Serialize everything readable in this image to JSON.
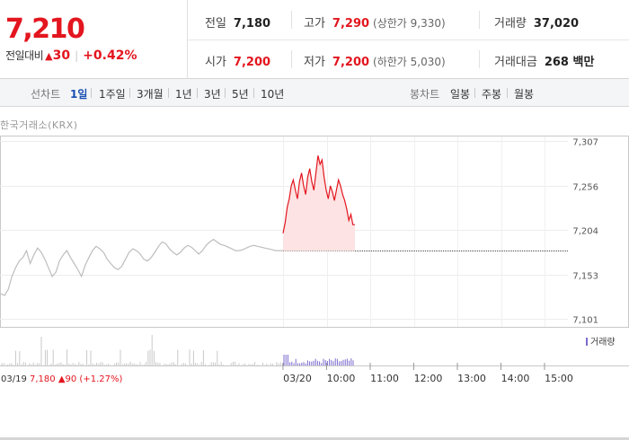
{
  "quote": {
    "price": "7,210",
    "change_label": "전일대비",
    "change_value": "30",
    "change_pct": "+0.42%",
    "prev_close_label": "전일",
    "prev_close": "7,180",
    "high_label": "고가",
    "high": "7,290",
    "upper_limit": "(상한가 9,330)",
    "volume_label": "거래량",
    "volume": "37,020",
    "open_label": "시가",
    "open": "7,200",
    "low_label": "저가",
    "low": "7,200",
    "lower_limit": "(하한가 5,030)",
    "amount_label": "거래대금",
    "amount": "268 백만"
  },
  "tabs": {
    "line_label": "선차트",
    "line": [
      "1일",
      "1주일",
      "3개월",
      "1년",
      "3년",
      "5년",
      "10년"
    ],
    "candle_label": "봉차트",
    "candle": [
      "일봉",
      "주봉",
      "월봉"
    ],
    "active": "1일"
  },
  "source_label": "한국거래소(KRX)",
  "chart_data": {
    "type": "line",
    "y_ticks": [
      "7,307",
      "7,256",
      "7,204",
      "7,153",
      "7,101"
    ],
    "ylim": [
      7101,
      7307
    ],
    "reference_price": 7180,
    "x_ticks": [
      "03/20",
      "10:00",
      "11:00",
      "12:00",
      "13:00",
      "14:00",
      "15:00"
    ],
    "x_tick_hours": [
      9.0,
      10.0,
      11.0,
      12.0,
      13.0,
      14.0,
      15.0
    ],
    "prev_day_caption": {
      "date": "03/19",
      "price": "7,180",
      "change": "90",
      "pct": "(+1.27%)"
    },
    "legend": "거래량",
    "grid": true,
    "series": [
      {
        "name": "",
        "day": "03/19",
        "values": [
          7130,
          7128,
          7135,
          7150,
          7160,
          7168,
          7172,
          7180,
          7165,
          7175,
          7183,
          7178,
          7170,
          7160,
          7150,
          7155,
          7168,
          7175,
          7180,
          7172,
          7165,
          7158,
          7150,
          7163,
          7172,
          7180,
          7185,
          7182,
          7178,
          7170,
          7165,
          7160,
          7158,
          7162,
          7170,
          7178,
          7182,
          7180,
          7176,
          7170,
          7168,
          7172,
          7178,
          7185,
          7190,
          7188,
          7182,
          7178,
          7175,
          7178,
          7183,
          7186,
          7184,
          7180,
          7176,
          7180,
          7186,
          7190,
          7193,
          7190,
          7187,
          7186,
          7184,
          7182,
          7180,
          7180,
          7181,
          7183,
          7185,
          7186,
          7185,
          7184,
          7183,
          7182,
          7181,
          7180,
          7180,
          7180
        ],
        "color": "#bdbdbd"
      },
      {
        "name": "",
        "day": "03/20",
        "values": [
          7200,
          7212,
          7230,
          7240,
          7255,
          7262,
          7250,
          7240,
          7260,
          7270,
          7255,
          7245,
          7265,
          7275,
          7260,
          7250,
          7270,
          7290,
          7280,
          7285,
          7265,
          7250,
          7240,
          7255,
          7248,
          7238,
          7250,
          7262,
          7255,
          7245,
          7238,
          7228,
          7215,
          7222,
          7210,
          7210
        ],
        "color": "#e3151e",
        "fill": "#fde3e3"
      }
    ]
  }
}
